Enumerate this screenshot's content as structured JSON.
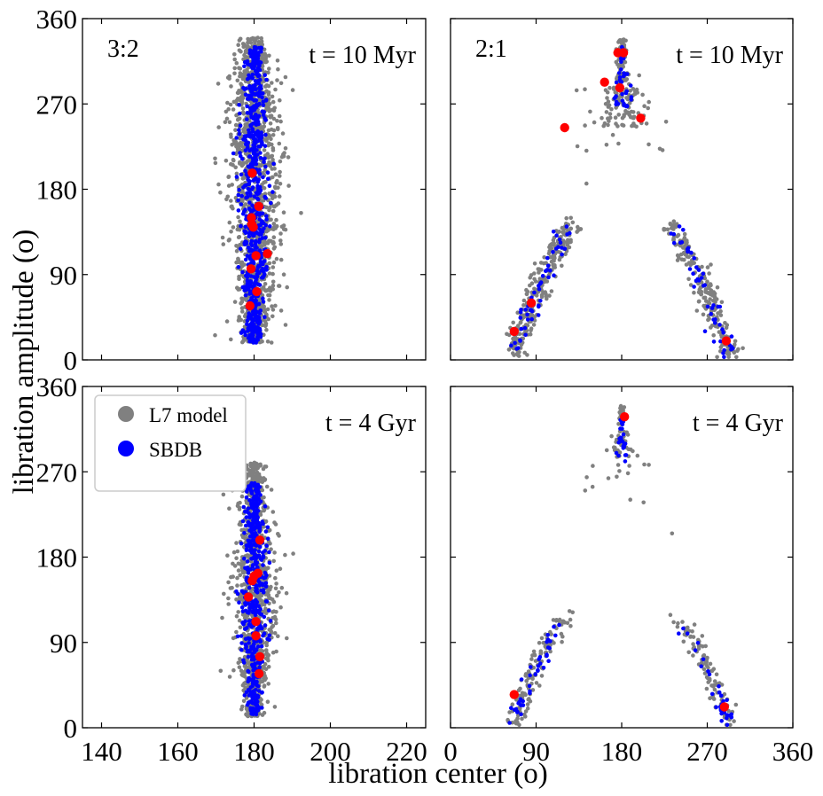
{
  "figure": {
    "xlabel": "libration center (o)",
    "ylabel": "libration amplitude (o)",
    "colors": {
      "model": "#808080",
      "sbdb": "#0000ff",
      "highlight": "#ff0000",
      "frame": "#000000"
    }
  },
  "legend": {
    "model_label": "L7 model",
    "sbdb_label": "SBDB",
    "placement": "top-left"
  },
  "chart_data": [
    {
      "type": "scatter",
      "panel": "top-left",
      "resonance": "3:2",
      "time": "t = 10 Myr",
      "xlim": [
        135,
        225
      ],
      "ylim": [
        0,
        360
      ],
      "xticks": [
        140,
        160,
        180,
        200,
        220
      ],
      "yticks": [
        0,
        90,
        180,
        270,
        360
      ],
      "series": [
        {
          "name": "L7 model",
          "center_mean": 180,
          "center_spread": 2.8,
          "amp_range": [
            20,
            340
          ]
        },
        {
          "name": "SBDB",
          "center_mean": 180,
          "center_spread": 1.6,
          "amp_range": [
            18,
            330
          ]
        },
        {
          "name": "highlighted",
          "x": [
            179.5,
            181.2,
            179.3,
            179.8,
            180.5,
            183.5,
            179.2,
            180.7,
            178.9,
            179.4
          ],
          "y": [
            197,
            162,
            150,
            140,
            110,
            112,
            96,
            72,
            57,
            143
          ]
        }
      ]
    },
    {
      "type": "scatter",
      "panel": "top-right",
      "resonance": "2:1",
      "time": "t = 10 Myr",
      "xlim": [
        0,
        360
      ],
      "ylim": [
        0,
        360
      ],
      "xticks": [
        0,
        90,
        180,
        270,
        360
      ],
      "yticks": [
        0,
        90,
        180,
        270,
        360
      ],
      "series": [
        {
          "name": "L7 model",
          "shape": "arc + central cluster",
          "arc_x_range": [
            68,
            292
          ],
          "cluster_center": 180
        },
        {
          "name": "SBDB",
          "shape": "arc + central cluster"
        },
        {
          "name": "highlighted",
          "x": [
            176,
            182,
            162,
            178,
            120,
            200,
            85,
            67,
            290
          ],
          "y": [
            324,
            324,
            293,
            287,
            245,
            255,
            60,
            30,
            20
          ]
        }
      ]
    },
    {
      "type": "scatter",
      "panel": "bottom-left",
      "resonance": "",
      "time": "t = 4 Gyr",
      "xlim": [
        135,
        225
      ],
      "ylim": [
        0,
        360
      ],
      "xticks": [
        140,
        160,
        180,
        200,
        220
      ],
      "yticks": [
        0,
        90,
        180,
        270,
        360
      ],
      "series": [
        {
          "name": "L7 model",
          "center_mean": 180,
          "center_spread": 2.2,
          "amp_range": [
            15,
            280
          ]
        },
        {
          "name": "SBDB",
          "center_mean": 180,
          "center_spread": 1.4,
          "amp_range": [
            15,
            258
          ]
        },
        {
          "name": "highlighted",
          "x": [
            181.5,
            181.0,
            179.5,
            180.0,
            178.5,
            180.5,
            180.5,
            181.5,
            181.3
          ],
          "y": [
            198,
            163,
            155,
            160,
            138,
            112,
            97,
            75,
            57
          ]
        }
      ]
    },
    {
      "type": "scatter",
      "panel": "bottom-right",
      "resonance": "",
      "time": "t = 4 Gyr",
      "xlim": [
        0,
        360
      ],
      "ylim": [
        0,
        360
      ],
      "xticks": [
        0,
        90,
        180,
        270,
        360
      ],
      "yticks": [
        0,
        90,
        180,
        270,
        360
      ],
      "series": [
        {
          "name": "L7 model",
          "shape": "arc + central cluster",
          "arc_x_range": [
            66,
            294
          ],
          "cluster_center": 180
        },
        {
          "name": "SBDB",
          "shape": "arc + central cluster"
        },
        {
          "name": "highlighted",
          "x": [
            183,
            67,
            288
          ],
          "y": [
            328,
            35,
            22
          ]
        }
      ]
    }
  ]
}
